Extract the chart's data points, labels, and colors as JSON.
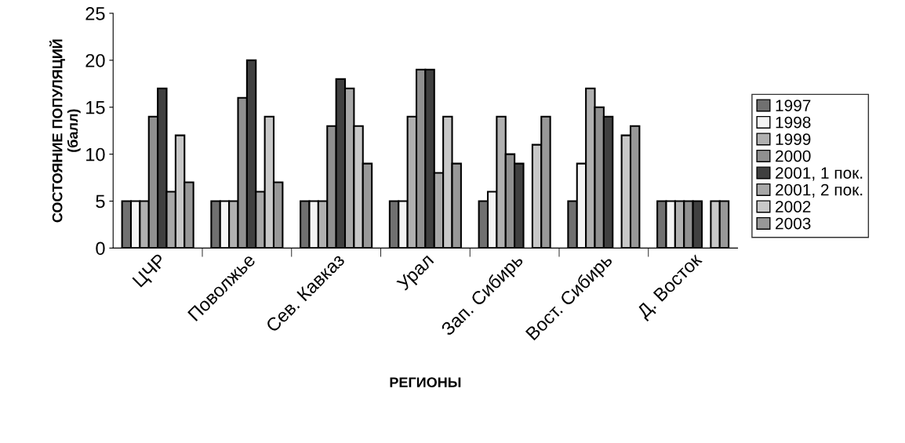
{
  "chart_data": {
    "type": "bar",
    "xlabel": "РЕГИОНЫ",
    "ylabel": "СОСТОЯНИЕ ПОПУЛЯЦИЙ\n(балл)",
    "categories": [
      "ЦЧР",
      "Поволжье",
      "Сев. Кавказ",
      "Урал",
      "Зап. Сибирь",
      "Вост. Сибирь",
      "Д. Восток"
    ],
    "series": [
      {
        "name": "1997",
        "color": "#707070",
        "values": [
          5,
          5,
          5,
          5,
          5,
          5,
          5
        ]
      },
      {
        "name": "1998",
        "color": "#f4f4f4",
        "values": [
          5,
          5,
          5,
          5,
          6,
          9,
          5
        ]
      },
      {
        "name": "1999",
        "color": "#b0b0b0",
        "values": [
          5,
          5,
          5,
          14,
          14,
          17,
          5
        ]
      },
      {
        "name": "2000",
        "color": "#909090",
        "values": [
          14,
          16,
          13,
          19,
          10,
          15,
          5
        ]
      },
      {
        "name": "2001, 1 пок.",
        "color": "#404040",
        "values": [
          17,
          20,
          18,
          19,
          9,
          14,
          5
        ]
      },
      {
        "name": "2001, 2 пок.",
        "color": "#a8a8a8",
        "values": [
          6,
          6,
          17,
          8,
          null,
          null,
          null
        ]
      },
      {
        "name": "2002",
        "color": "#c8c8c8",
        "values": [
          12,
          14,
          13,
          14,
          11,
          12,
          5
        ]
      },
      {
        "name": "2003",
        "color": "#989898",
        "values": [
          7,
          7,
          9,
          9,
          14,
          13,
          5
        ]
      }
    ],
    "ylim": [
      0,
      25
    ],
    "yticks": [
      0,
      5,
      10,
      15,
      20,
      25
    ],
    "grid": false,
    "legend": "right"
  }
}
